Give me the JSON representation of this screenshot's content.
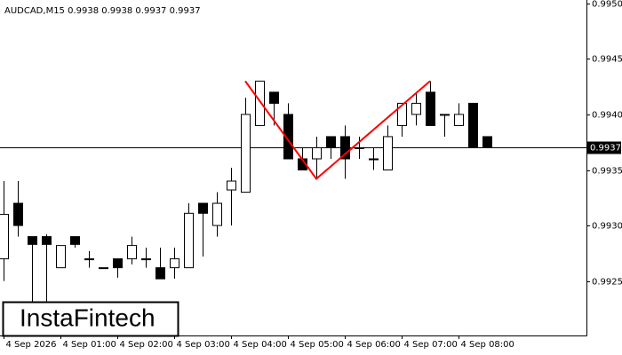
{
  "chart_data": {
    "type": "candlestick",
    "title": "AUDCAD,M15  0.9938 0.9938 0.9937 0.9937",
    "brand": "InstaFintech",
    "x": [
      "4 Sep 2026",
      null,
      null,
      null,
      "4 Sep 01:00",
      null,
      null,
      null,
      "4 Sep 02:00",
      null,
      null,
      null,
      "4 Sep 03:00",
      null,
      null,
      null,
      "4 Sep 04:00",
      null,
      null,
      null,
      "4 Sep 05:00",
      null,
      null,
      null,
      "4 Sep 06:00",
      null,
      null,
      null,
      "4 Sep 07:00",
      null,
      null,
      null,
      "4 Sep 08:00",
      null,
      null
    ],
    "open": [
      0.9927,
      0.9932,
      0.9929,
      0.9929,
      0.99262,
      0.9929,
      0.9927,
      0.99262,
      0.9927,
      0.9927,
      0.9927,
      0.99262,
      0.99262,
      0.99262,
      0.9932,
      0.993,
      0.99332,
      0.9933,
      0.9939,
      0.9942,
      0.994,
      0.9936,
      0.9936,
      0.9938,
      0.9938,
      0.9937,
      0.9936,
      0.9935,
      0.9939,
      0.994,
      0.9942,
      0.994,
      0.9939,
      0.9941,
      0.9938
    ],
    "high": [
      0.9934,
      0.9934,
      0.9929,
      0.99292,
      0.99282,
      0.9929,
      0.99277,
      0.99262,
      0.9927,
      0.9929,
      0.9928,
      0.9928,
      0.9928,
      0.9932,
      0.9932,
      0.9933,
      0.99352,
      0.99415,
      0.9943,
      0.9942,
      0.9941,
      0.9937,
      0.9938,
      0.9938,
      0.9939,
      0.9938,
      0.9937,
      0.9939,
      0.9941,
      0.9942,
      0.9943,
      0.994,
      0.9941,
      0.9941,
      0.9938
    ],
    "low": [
      0.9925,
      0.9929,
      0.9923,
      0.9923,
      0.99262,
      0.9928,
      0.99262,
      0.99262,
      0.99253,
      0.99265,
      0.99262,
      0.99252,
      0.99252,
      0.99262,
      0.99272,
      0.9929,
      0.993,
      0.9933,
      0.9939,
      0.9939,
      0.9936,
      0.9935,
      0.99342,
      0.9936,
      0.99342,
      0.9936,
      0.9935,
      0.9935,
      0.9938,
      0.9939,
      0.9939,
      0.9938,
      0.9939,
      0.9937,
      0.9937
    ],
    "close": [
      0.9931,
      0.993,
      0.99283,
      0.99283,
      0.99282,
      0.99283,
      0.9927,
      0.99262,
      0.99262,
      0.99282,
      0.9927,
      0.99252,
      0.9927,
      0.99311,
      0.99311,
      0.9932,
      0.9934,
      0.994,
      0.9943,
      0.9941,
      0.9936,
      0.9935,
      0.9937,
      0.9937,
      0.9936,
      0.9937,
      0.9936,
      0.9938,
      0.9941,
      0.9941,
      0.9939,
      0.994,
      0.994,
      0.9937,
      0.9937
    ],
    "up_color": "#ffffff",
    "down_color": "#000000",
    "last_price": 0.9937,
    "pattern": {
      "x": [
        17,
        22,
        30
      ],
      "values": [
        0.9943,
        0.99342,
        0.9943
      ],
      "color": "#ff0000"
    },
    "ylim": [
      0.99201,
      0.99503
    ],
    "yticks": [
      0.9925,
      {
        "value": 0.993,
        "label": "0.9930"
      },
      0.9935,
      {
        "value": 0.994,
        "label": "0.9940"
      },
      0.9945,
      {
        "value": 0.995,
        "label": "0.9950"
      }
    ]
  }
}
